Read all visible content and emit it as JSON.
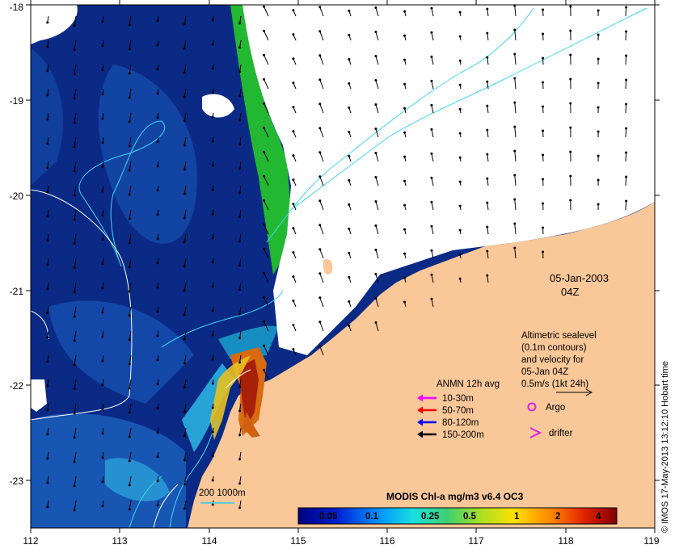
{
  "map": {
    "date": "05-Jan-2003",
    "time": "04Z",
    "x_ticks": [
      "112",
      "113",
      "114",
      "115",
      "116",
      "117",
      "118",
      "119"
    ],
    "y_ticks": [
      "-18",
      "-19",
      "-20",
      "-21",
      "-22",
      "-23"
    ],
    "colors": {
      "land": "#f9c798",
      "ocean_low": "#08207e",
      "cloud": "#ffffff",
      "contour": "#2fd0e8"
    }
  },
  "altimetry_note": {
    "lines": [
      "Altimetric sealevel",
      "(0.1m contours)",
      "and velocity for",
      "05-Jan 04Z",
      "0.5m/s (1kt 24h)"
    ]
  },
  "anmn": {
    "title": "ANMN 12h avg",
    "items": [
      {
        "label": "10-30m",
        "color": "#ff00ff"
      },
      {
        "label": "50-70m",
        "color": "#ff0000"
      },
      {
        "label": "80-120m",
        "color": "#0000ff"
      },
      {
        "label": "150-200m",
        "color": "#000000"
      }
    ]
  },
  "markers": {
    "argo": "Argo",
    "drifter": "drifter"
  },
  "isobath_label": "200  1000m",
  "colorbar": {
    "title": "MODIS Chl-a mg/m3 v6.4 OC3",
    "ticks": [
      "0.05",
      "0.1",
      "0.25",
      "0.5",
      "1",
      "2",
      "4"
    ]
  },
  "credit": "© IMOS 17-May-2013 13:12:10 Hobart time"
}
